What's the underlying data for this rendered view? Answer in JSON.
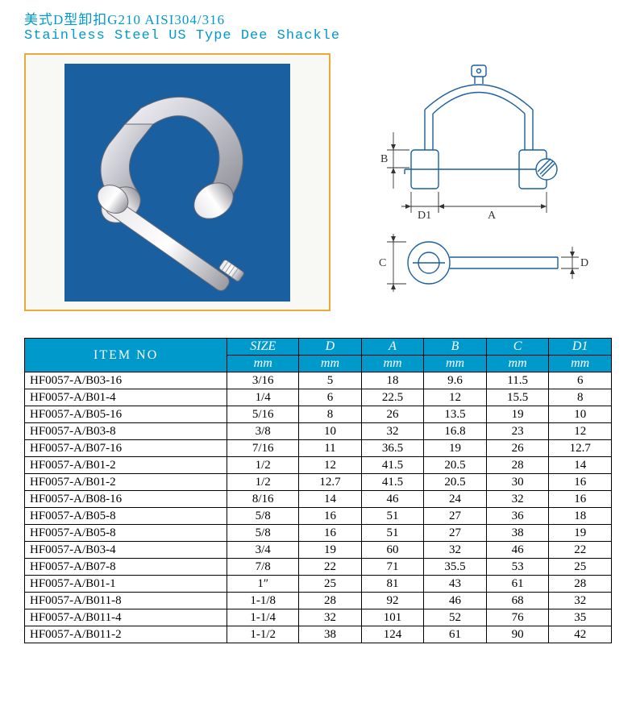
{
  "title": {
    "cn": "美式D型卸扣G210  AISI304/316",
    "en": "Stainless Steel US Type Dee Shackle"
  },
  "diagram": {
    "labels": {
      "A": "A",
      "B": "B",
      "C": "C",
      "D": "D",
      "D1": "D1"
    },
    "stroke": "#1a5fa0",
    "hatch": "#1a5fa0",
    "label_color": "#333333"
  },
  "photo": {
    "bg": "#1a5fa0",
    "frame": "#e8aa3a",
    "metal_light": "#e8e8ec",
    "metal_mid": "#b8b8c0",
    "metal_dark": "#78787f"
  },
  "table": {
    "header_bg": "#0099cc",
    "header_fg": "#ffffff",
    "border": "#000000",
    "columns": [
      "ITEM  NO",
      "SIZE",
      "D",
      "A",
      "B",
      "C",
      "D1"
    ],
    "units": [
      "",
      "mm",
      "mm",
      "mm",
      "mm",
      "mm",
      "mm"
    ],
    "rows": [
      [
        "HF0057-A/B03-16",
        "3/16",
        "5",
        "18",
        "9.6",
        "11.5",
        "6"
      ],
      [
        "HF0057-A/B01-4",
        "1/4",
        "6",
        "22.5",
        "12",
        "15.5",
        "8"
      ],
      [
        "HF0057-A/B05-16",
        "5/16",
        "8",
        "26",
        "13.5",
        "19",
        "10"
      ],
      [
        "HF0057-A/B03-8",
        "3/8",
        "10",
        "32",
        "16.8",
        "23",
        "12"
      ],
      [
        "HF0057-A/B07-16",
        "7/16",
        "11",
        "36.5",
        "19",
        "26",
        "12.7"
      ],
      [
        "HF0057-A/B01-2",
        "1/2",
        "12",
        "41.5",
        "20.5",
        "28",
        "14"
      ],
      [
        "HF0057-A/B01-2",
        "1/2",
        "12.7",
        "41.5",
        "20.5",
        "30",
        "16"
      ],
      [
        "HF0057-A/B08-16",
        "8/16",
        "14",
        "46",
        "24",
        "32",
        "16"
      ],
      [
        "HF0057-A/B05-8",
        "5/8",
        "16",
        "51",
        "27",
        "36",
        "18"
      ],
      [
        "HF0057-A/B05-8",
        "5/8",
        "16",
        "51",
        "27",
        "38",
        "19"
      ],
      [
        "HF0057-A/B03-4",
        "3/4",
        "19",
        "60",
        "32",
        "46",
        "22"
      ],
      [
        "HF0057-A/B07-8",
        "7/8",
        "22",
        "71",
        "35.5",
        "53",
        "25"
      ],
      [
        "HF0057-A/B01-1",
        "1″",
        "25",
        "81",
        "43",
        "61",
        "28"
      ],
      [
        "HF0057-A/B011-8",
        "1-1/8",
        "28",
        "92",
        "46",
        "68",
        "32"
      ],
      [
        "HF0057-A/B011-4",
        "1-1/4",
        "32",
        "101",
        "52",
        "76",
        "35"
      ],
      [
        "HF0057-A/B011-2",
        "1-1/2",
        "38",
        "124",
        "61",
        "90",
        "42"
      ]
    ]
  }
}
